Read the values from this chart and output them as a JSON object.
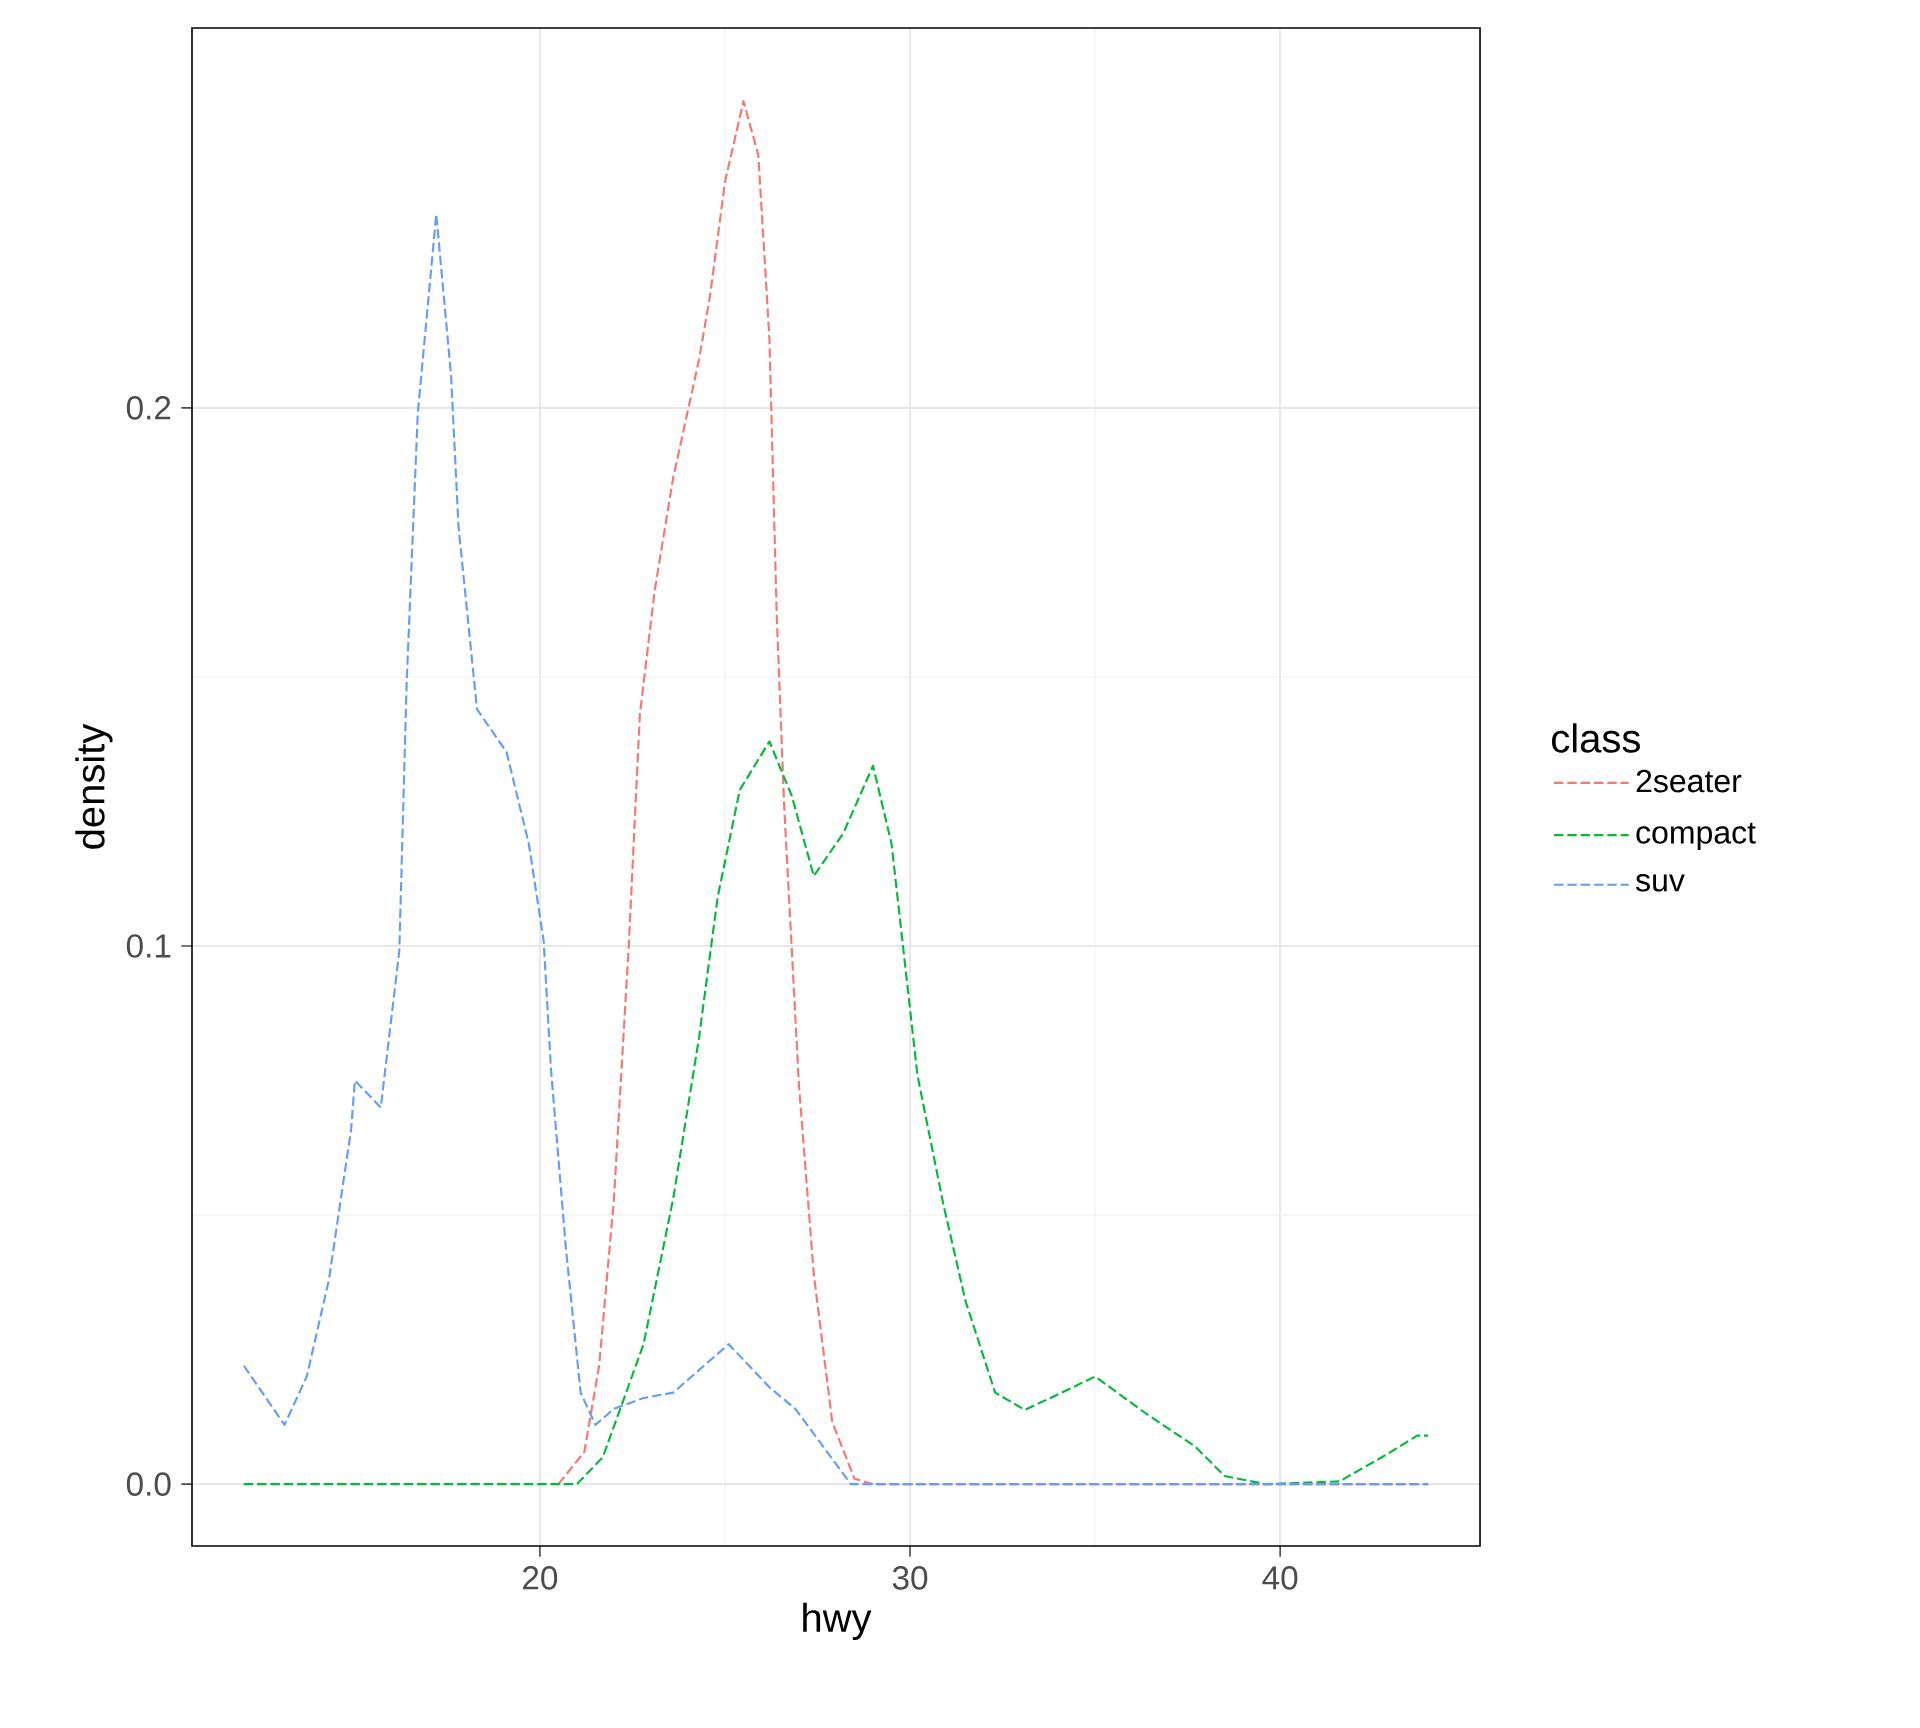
{
  "chart_data": {
    "type": "line",
    "xlabel": "hwy",
    "ylabel": "density",
    "legend_title": "class",
    "legend": "right",
    "grid": true,
    "line_style": "dashed",
    "xlim": [
      10.6,
      45.4
    ],
    "ylim": [
      -0.0115,
      0.2706
    ],
    "xticks": [
      20,
      30,
      40
    ],
    "yticks": [
      {
        "value": 0,
        "label": "0.0"
      },
      {
        "value": 0.1,
        "label": "0.1"
      },
      {
        "value": 0.2,
        "label": "0.2"
      }
    ],
    "series": [
      {
        "name": "2seater",
        "color": "#f8766d",
        "x": [
          20.5,
          21.2,
          21.6,
          22.0,
          22.4,
          22.7,
          23.1,
          23.6,
          24.3,
          24.6,
          25.0,
          25.5,
          25.9,
          26.2,
          26.4,
          26.6,
          27.0,
          27.4,
          27.9,
          28.5,
          29.0,
          44
        ],
        "values": [
          0,
          0.006,
          0.022,
          0.053,
          0.1,
          0.143,
          0.166,
          0.187,
          0.209,
          0.221,
          0.242,
          0.257,
          0.247,
          0.213,
          0.161,
          0.126,
          0.074,
          0.039,
          0.0115,
          0.001,
          0,
          0
        ]
      },
      {
        "name": "compact",
        "color": "#00ba38",
        "x": [
          12,
          21.0,
          21.7,
          22.8,
          23.6,
          24.3,
          24.8,
          25.4,
          26.2,
          26.8,
          27.4,
          28.2,
          29.0,
          29.5,
          30.2,
          30.9,
          31.5,
          32.3,
          33.1,
          34.1,
          35.0,
          36.4,
          37.7,
          38.5,
          39.6,
          41.6,
          42.9,
          43.7,
          44
        ],
        "values": [
          0,
          0,
          0.005,
          0.026,
          0.053,
          0.083,
          0.109,
          0.129,
          0.138,
          0.128,
          0.113,
          0.121,
          0.1335,
          0.119,
          0.076,
          0.052,
          0.034,
          0.017,
          0.0138,
          0.017,
          0.02,
          0.013,
          0.007,
          0.0015,
          0,
          0.0005,
          0.0056,
          0.009,
          0.009
        ]
      },
      {
        "name": "suv",
        "color": "#619cff",
        "x": [
          12,
          13.1,
          13.7,
          14.3,
          14.9,
          15.0,
          15.7,
          16.2,
          16.4,
          16.7,
          17.2,
          17.6,
          17.8,
          18.3,
          19.1,
          19.7,
          20.1,
          20.3,
          20.7,
          21.1,
          21.5,
          22.0,
          22.8,
          23.6,
          25.1,
          26.2,
          26.9,
          27.8,
          28.4,
          44
        ],
        "values": [
          0.022,
          0.011,
          0.02,
          0.038,
          0.066,
          0.075,
          0.07,
          0.099,
          0.149,
          0.199,
          0.236,
          0.206,
          0.178,
          0.144,
          0.136,
          0.119,
          0.101,
          0.077,
          0.044,
          0.017,
          0.011,
          0.014,
          0.016,
          0.017,
          0.026,
          0.018,
          0.014,
          0.0056,
          0,
          0
        ]
      }
    ]
  }
}
